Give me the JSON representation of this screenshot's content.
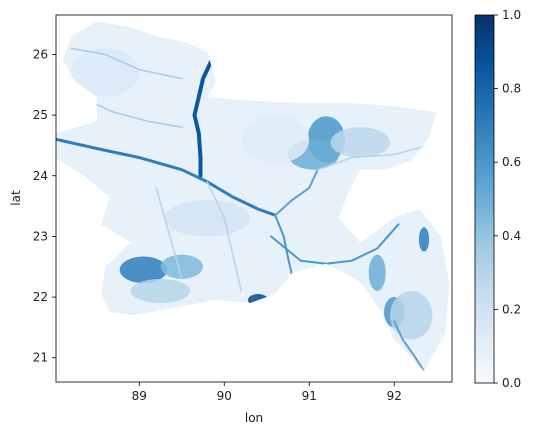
{
  "chart_data": {
    "type": "heatmap",
    "title": "",
    "xlabel": "lon",
    "ylabel": "lat",
    "xlim": [
      88.02,
      92.68
    ],
    "ylim": [
      20.6,
      26.65
    ],
    "xticks": [
      89,
      90,
      91,
      92
    ],
    "yticks": [
      21,
      22,
      23,
      24,
      25,
      26
    ],
    "colormap": "Blues",
    "colorbar": {
      "min": 0.0,
      "max": 1.0,
      "ticks": [
        "0.0",
        "0.2",
        "0.4",
        "0.6",
        "0.8",
        "1.0"
      ]
    },
    "region_outline_lonlat": [
      [
        88.1,
        25.9
      ],
      [
        88.2,
        26.3
      ],
      [
        88.5,
        26.55
      ],
      [
        88.9,
        26.45
      ],
      [
        89.2,
        26.3
      ],
      [
        89.55,
        26.2
      ],
      [
        89.8,
        26.05
      ],
      [
        89.9,
        25.55
      ],
      [
        89.8,
        25.3
      ],
      [
        90.2,
        25.25
      ],
      [
        90.9,
        25.2
      ],
      [
        91.5,
        25.2
      ],
      [
        92.0,
        25.15
      ],
      [
        92.5,
        25.05
      ],
      [
        92.4,
        24.6
      ],
      [
        92.2,
        24.25
      ],
      [
        91.9,
        24.1
      ],
      [
        91.6,
        24.1
      ],
      [
        91.45,
        23.7
      ],
      [
        91.35,
        23.3
      ],
      [
        91.6,
        22.9
      ],
      [
        92.05,
        23.35
      ],
      [
        92.3,
        23.45
      ],
      [
        92.55,
        23.0
      ],
      [
        92.65,
        22.2
      ],
      [
        92.6,
        21.4
      ],
      [
        92.35,
        20.78
      ],
      [
        92.0,
        21.3
      ],
      [
        91.85,
        21.75
      ],
      [
        91.6,
        22.25
      ],
      [
        91.2,
        22.55
      ],
      [
        90.8,
        22.4
      ],
      [
        90.6,
        22.05
      ],
      [
        90.3,
        21.9
      ],
      [
        89.9,
        21.95
      ],
      [
        89.5,
        21.85
      ],
      [
        88.95,
        21.7
      ],
      [
        88.65,
        21.75
      ],
      [
        88.55,
        22.05
      ],
      [
        88.6,
        22.5
      ],
      [
        88.9,
        22.9
      ],
      [
        88.55,
        23.2
      ],
      [
        88.65,
        23.65
      ],
      [
        88.35,
        24.0
      ],
      [
        88.0,
        24.3
      ],
      [
        88.02,
        24.7
      ],
      [
        88.5,
        24.9
      ],
      [
        88.5,
        25.3
      ],
      [
        88.25,
        25.55
      ],
      [
        88.1,
        25.9
      ]
    ],
    "hotspots": [
      {
        "lon": 91.2,
        "lat": 24.6,
        "rx": 0.22,
        "ry": 0.38,
        "value": 0.6
      },
      {
        "lon": 91.05,
        "lat": 24.35,
        "rx": 0.3,
        "ry": 0.25,
        "value": 0.5
      },
      {
        "lon": 91.6,
        "lat": 24.55,
        "rx": 0.35,
        "ry": 0.25,
        "value": 0.28
      },
      {
        "lon": 89.05,
        "lat": 22.45,
        "rx": 0.28,
        "ry": 0.22,
        "value": 0.7
      },
      {
        "lon": 89.5,
        "lat": 22.5,
        "rx": 0.25,
        "ry": 0.2,
        "value": 0.45
      },
      {
        "lon": 89.25,
        "lat": 22.1,
        "rx": 0.35,
        "ry": 0.2,
        "value": 0.3
      },
      {
        "lon": 90.4,
        "lat": 21.95,
        "rx": 0.12,
        "ry": 0.1,
        "value": 0.9
      },
      {
        "lon": 92.0,
        "lat": 21.75,
        "rx": 0.12,
        "ry": 0.25,
        "value": 0.6
      },
      {
        "lon": 92.2,
        "lat": 21.7,
        "rx": 0.25,
        "ry": 0.4,
        "value": 0.3
      },
      {
        "lon": 92.35,
        "lat": 22.95,
        "rx": 0.06,
        "ry": 0.2,
        "value": 0.7
      },
      {
        "lon": 89.8,
        "lat": 23.3,
        "rx": 0.5,
        "ry": 0.3,
        "value": 0.18
      },
      {
        "lon": 88.6,
        "lat": 25.7,
        "rx": 0.4,
        "ry": 0.4,
        "value": 0.14
      },
      {
        "lon": 90.6,
        "lat": 24.6,
        "rx": 0.4,
        "ry": 0.4,
        "value": 0.12
      },
      {
        "lon": 91.8,
        "lat": 22.4,
        "rx": 0.1,
        "ry": 0.3,
        "value": 0.5
      }
    ],
    "rivers": [
      {
        "value": 0.85,
        "width": 4,
        "points": [
          [
            89.85,
            25.9
          ],
          [
            89.75,
            25.6
          ],
          [
            89.7,
            25.3
          ],
          [
            89.65,
            25.0
          ],
          [
            89.7,
            24.7
          ],
          [
            89.72,
            24.3
          ],
          [
            89.72,
            24.0
          ]
        ]
      },
      {
        "value": 0.7,
        "width": 3,
        "points": [
          [
            88.02,
            24.6
          ],
          [
            88.5,
            24.45
          ],
          [
            89.0,
            24.3
          ],
          [
            89.5,
            24.1
          ],
          [
            89.8,
            23.9
          ],
          [
            90.1,
            23.65
          ],
          [
            90.4,
            23.45
          ],
          [
            90.6,
            23.35
          ]
        ]
      },
      {
        "value": 0.6,
        "width": 2,
        "points": [
          [
            90.6,
            23.35
          ],
          [
            90.7,
            23.0
          ],
          [
            90.75,
            22.65
          ],
          [
            90.8,
            22.35
          ]
        ]
      },
      {
        "value": 0.55,
        "width": 2,
        "points": [
          [
            90.6,
            23.35
          ],
          [
            90.8,
            23.6
          ],
          [
            91.0,
            23.8
          ],
          [
            91.1,
            24.1
          ]
        ]
      },
      {
        "value": 0.6,
        "width": 2,
        "points": [
          [
            90.55,
            23.0
          ],
          [
            90.9,
            22.6
          ],
          [
            91.2,
            22.55
          ],
          [
            91.5,
            22.6
          ],
          [
            91.8,
            22.8
          ],
          [
            92.05,
            23.2
          ]
        ]
      },
      {
        "value": 0.55,
        "width": 2,
        "points": [
          [
            92.0,
            21.6
          ],
          [
            92.1,
            21.3
          ],
          [
            92.25,
            21.0
          ],
          [
            92.35,
            20.78
          ]
        ]
      },
      {
        "value": 0.35,
        "width": 1.5,
        "points": [
          [
            88.3,
            25.3
          ],
          [
            88.7,
            25.05
          ],
          [
            89.1,
            24.9
          ],
          [
            89.5,
            24.8
          ]
        ]
      },
      {
        "value": 0.35,
        "width": 1.5,
        "points": [
          [
            88.2,
            26.1
          ],
          [
            88.6,
            26.0
          ],
          [
            89.0,
            25.75
          ],
          [
            89.5,
            25.6
          ]
        ]
      },
      {
        "value": 0.3,
        "width": 1.5,
        "points": [
          [
            89.2,
            23.8
          ],
          [
            89.3,
            23.3
          ],
          [
            89.4,
            22.8
          ],
          [
            89.5,
            22.3
          ]
        ]
      },
      {
        "value": 0.3,
        "width": 1.5,
        "points": [
          [
            89.8,
            23.9
          ],
          [
            90.0,
            23.3
          ],
          [
            90.1,
            22.7
          ],
          [
            90.2,
            22.1
          ]
        ]
      },
      {
        "value": 0.3,
        "width": 1.5,
        "points": [
          [
            91.1,
            24.1
          ],
          [
            91.5,
            24.3
          ],
          [
            92.0,
            24.35
          ],
          [
            92.4,
            24.5
          ]
        ]
      }
    ]
  }
}
